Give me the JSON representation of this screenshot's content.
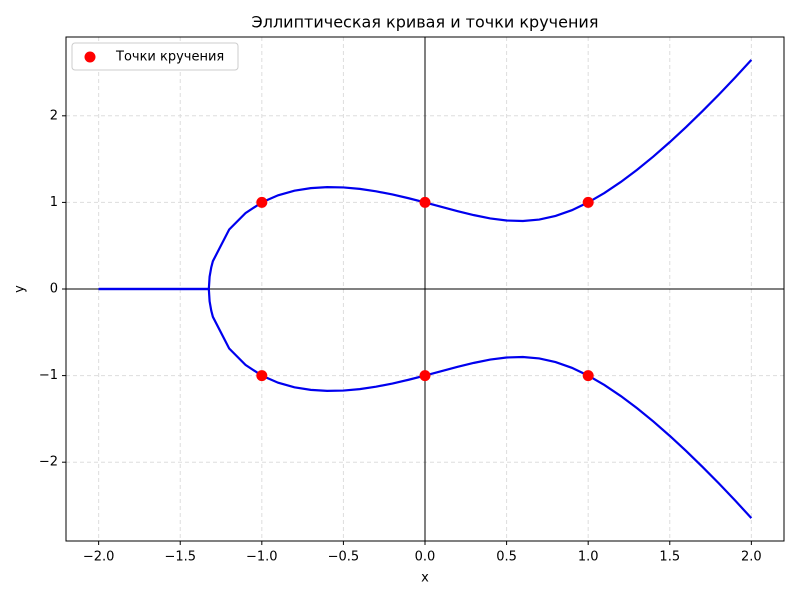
{
  "chart_data": {
    "type": "line",
    "title": "Эллиптическая кривая и точки кручения",
    "x_label": "x",
    "y_label": "y",
    "x": [
      -2.0,
      -1.9,
      -1.8,
      -1.7,
      -1.6,
      -1.5,
      -1.4,
      -1.3247,
      -1.32,
      -1.31,
      -1.3,
      -1.2,
      -1.1,
      -1.0,
      -0.9,
      -0.8,
      -0.7,
      -0.6,
      -0.5,
      -0.4,
      -0.3,
      -0.2,
      -0.1,
      0.0,
      0.1,
      0.2,
      0.3,
      0.4,
      0.5,
      0.6,
      0.7,
      0.8,
      0.9,
      1.0,
      1.1,
      1.2,
      1.3,
      1.4,
      1.5,
      1.6,
      1.7,
      1.8,
      1.9,
      2.0
    ],
    "series": [
      {
        "color": "#0000ee",
        "values": [
          0,
          0,
          0,
          0,
          0,
          0,
          0,
          0,
          0.142,
          0.249,
          0.321,
          0.687,
          0.877,
          1,
          1.082,
          1.135,
          1.165,
          1.176,
          1.173,
          1.156,
          1.128,
          1.092,
          1.048,
          1,
          0.949,
          0.899,
          0.853,
          0.815,
          0.791,
          0.785,
          0.802,
          0.844,
          0.91,
          1,
          1.109,
          1.236,
          1.377,
          1.531,
          1.696,
          1.87,
          2.053,
          2.243,
          2.441,
          2.646
        ]
      },
      {
        "color": "#0000ee",
        "values": [
          0,
          0,
          0,
          0,
          0,
          0,
          0,
          0,
          -0.142,
          -0.249,
          -0.321,
          -0.687,
          -0.877,
          -1,
          -1.082,
          -1.135,
          -1.165,
          -1.176,
          -1.173,
          -1.156,
          -1.128,
          -1.092,
          -1.048,
          -1,
          -0.949,
          -0.899,
          -0.853,
          -0.815,
          -0.791,
          -0.785,
          -0.802,
          -0.844,
          -0.91,
          -1,
          -1.109,
          -1.236,
          -1.377,
          -1.531,
          -1.696,
          -1.87,
          -2.053,
          -2.243,
          -2.441,
          -2.646
        ]
      }
    ],
    "points": {
      "name": "Точки кручения",
      "color": "#ff0000",
      "x": [
        -1,
        -1,
        0,
        0,
        1,
        1
      ],
      "y": [
        1,
        -1,
        1,
        -1,
        1,
        -1
      ]
    },
    "xlim": [
      -2.2,
      2.2
    ],
    "ylim": [
      -2.91,
      2.91
    ],
    "xticks": [
      {
        "value": -2,
        "label": "−2.0"
      },
      {
        "value": -1.5,
        "label": "−1.5"
      },
      {
        "value": -1,
        "label": "−1.0"
      },
      {
        "value": -0.5,
        "label": "−0.5"
      },
      {
        "value": 0,
        "label": "0.0"
      },
      0.5,
      {
        "value": 1,
        "label": "1.0"
      },
      1.5,
      {
        "value": 2,
        "label": "2.0"
      }
    ],
    "yticks": [
      {
        "value": -2,
        "label": "−2"
      },
      {
        "value": -1,
        "label": "−1"
      },
      0,
      1,
      2
    ],
    "grid": true,
    "legend": "upper left"
  }
}
